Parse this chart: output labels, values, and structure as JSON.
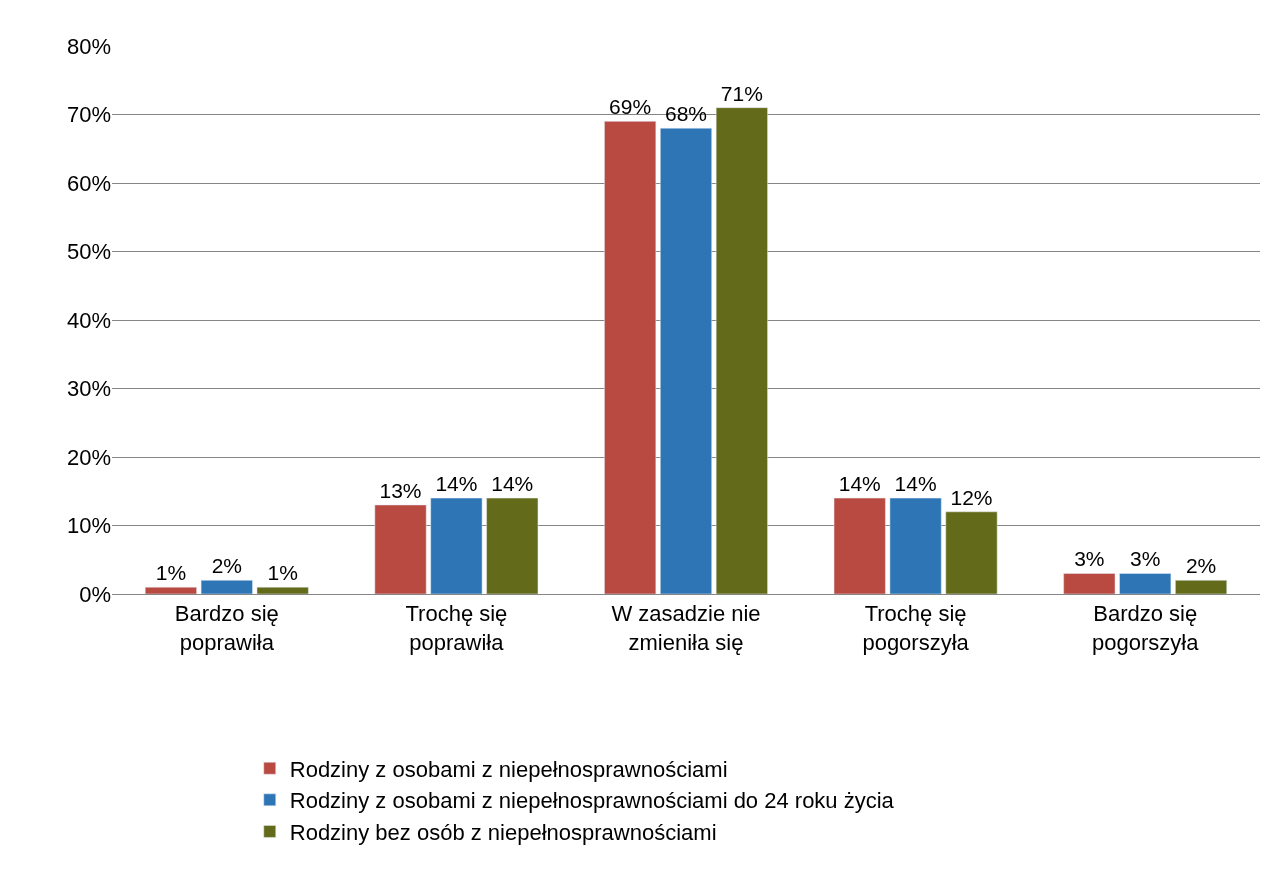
{
  "chart_data": {
    "type": "bar",
    "categories": [
      "Bardzo się poprawiła",
      "Trochę się poprawiła",
      "W zasadzie nie zmieniła się",
      "Trochę się pogorszyła",
      "Bardzo się pogorszyła"
    ],
    "series": [
      {
        "name": "Rodziny z osobami z niepełnosprawnościami",
        "color": "#b94a42",
        "values": [
          1,
          13,
          69,
          14,
          3
        ],
        "value_labels": [
          "1%",
          "13%",
          "69%",
          "14%",
          "3%"
        ]
      },
      {
        "name": "Rodziny z osobami z niepełnosprawnościami do 24 roku życia",
        "color": "#2e75b6",
        "values": [
          2,
          14,
          68,
          14,
          3
        ],
        "value_labels": [
          "2%",
          "14%",
          "68%",
          "14%",
          "3%"
        ]
      },
      {
        "name": "Rodziny bez osób z niepełnosprawnościami",
        "color": "#636b1a",
        "values": [
          1,
          14,
          71,
          12,
          2
        ],
        "value_labels": [
          "1%",
          "14%",
          "71%",
          "12%",
          "2%"
        ]
      }
    ],
    "ylim": [
      0,
      80
    ],
    "yticks": [
      {
        "value": 0,
        "label": "0%"
      },
      {
        "value": 10,
        "label": "10%"
      },
      {
        "value": 20,
        "label": "20%"
      },
      {
        "value": 30,
        "label": "30%"
      },
      {
        "value": 40,
        "label": "40%"
      },
      {
        "value": 50,
        "label": "50%"
      },
      {
        "value": 60,
        "label": "60%"
      },
      {
        "value": 70,
        "label": "70%"
      },
      {
        "value": 80,
        "label": "80%"
      }
    ],
    "grid": "y",
    "legend": "bottom"
  }
}
